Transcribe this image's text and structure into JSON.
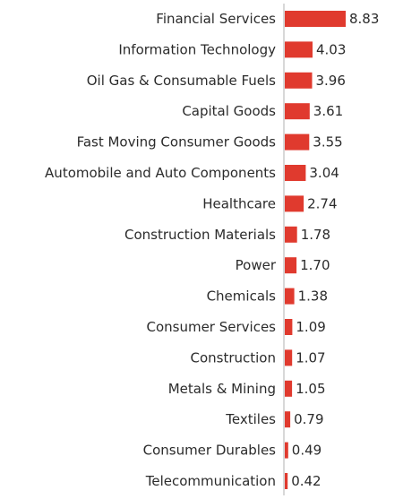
{
  "chart_data": {
    "type": "bar",
    "orientation": "horizontal",
    "categories": [
      "Financial Services",
      "Information Technology",
      "Oil Gas & Consumable Fuels",
      "Capital Goods",
      "Fast Moving Consumer Goods",
      "Automobile and Auto Components",
      "Healthcare",
      "Construction Materials",
      "Power",
      "Chemicals",
      "Consumer Services",
      "Construction",
      "Metals & Mining",
      "Textiles",
      "Consumer Durables",
      "Telecommunication"
    ],
    "values": [
      8.83,
      4.03,
      3.96,
      3.61,
      3.55,
      3.04,
      2.74,
      1.78,
      1.7,
      1.38,
      1.09,
      1.07,
      1.05,
      0.79,
      0.49,
      0.42
    ],
    "value_labels": [
      "8.83",
      "4.03",
      "3.96",
      "3.61",
      "3.55",
      "3.04",
      "2.74",
      "1.78",
      "1.70",
      "1.38",
      "1.09",
      "1.07",
      "1.05",
      "0.79",
      "0.49",
      "0.42"
    ],
    "title": "",
    "xlabel": "",
    "ylabel": "",
    "grid": false,
    "legend": "none",
    "bar_color": "#e03a2e",
    "axis_color": "#b0b0b0"
  }
}
